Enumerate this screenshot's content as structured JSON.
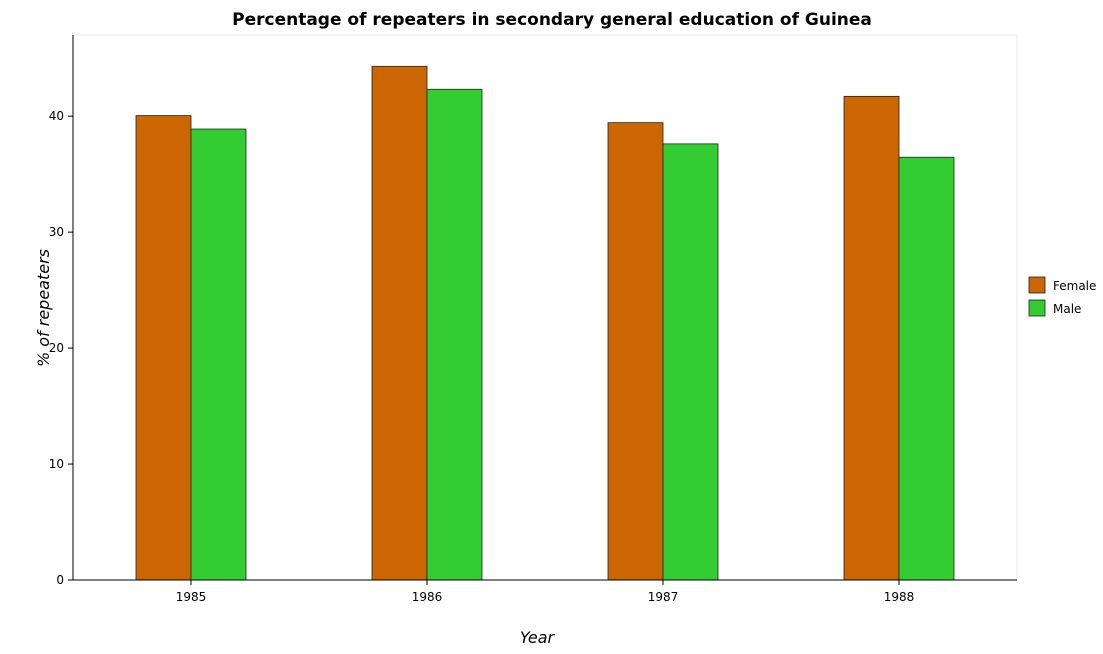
{
  "chart_data": {
    "type": "bar",
    "title": "Percentage of repeaters in secondary general education of Guinea",
    "xlabel": "Year",
    "ylabel": "% of repeaters",
    "categories": [
      "1985",
      "1986",
      "1987",
      "1988"
    ],
    "series": [
      {
        "name": "Female",
        "color": "#cc6600",
        "values": [
          40.05,
          44.3,
          39.44,
          41.71
        ]
      },
      {
        "name": "Male",
        "color": "#33cc33",
        "values": [
          38.89,
          42.32,
          37.61,
          36.46
        ]
      }
    ],
    "ylim": [
      0,
      47
    ],
    "yticks": [
      0,
      10,
      20,
      30,
      40
    ],
    "grid": false,
    "legend_position": "right"
  }
}
